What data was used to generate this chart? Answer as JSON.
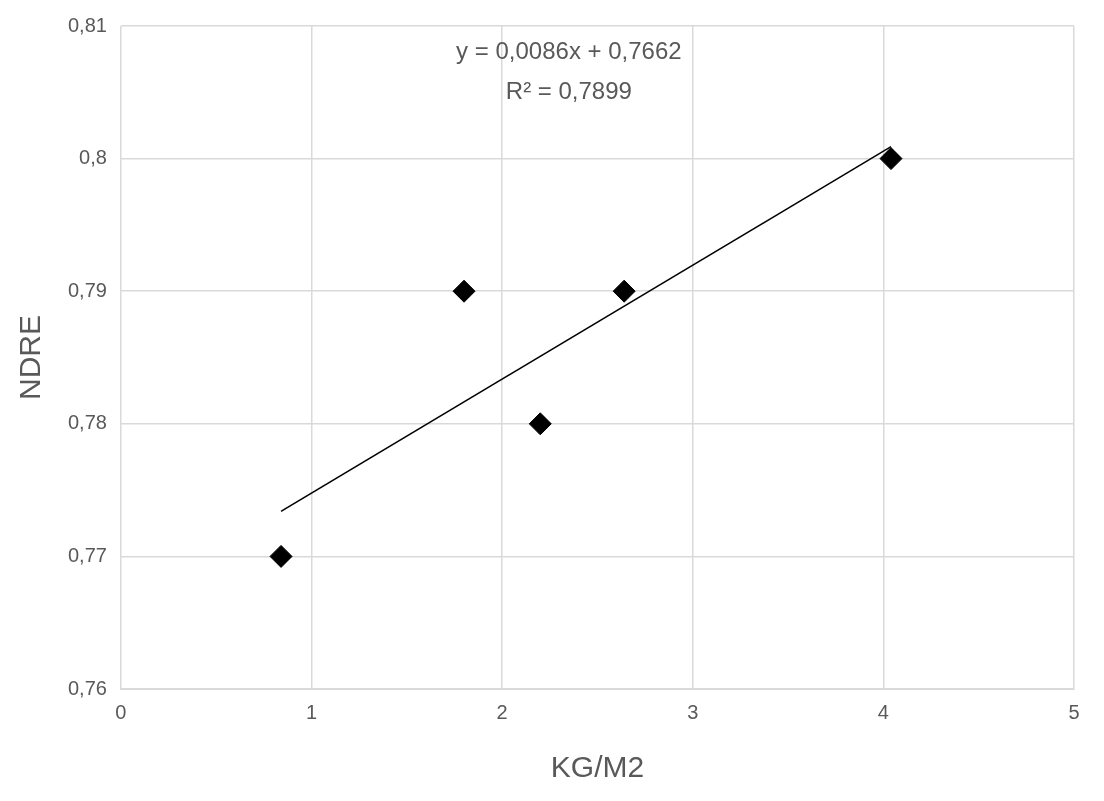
{
  "chart_data": {
    "type": "scatter",
    "xlabel": "KG/M2",
    "ylabel": "NDRE",
    "annotations": [
      "y = 0,0086x + 0,7662",
      "R² = 0,7899"
    ],
    "series": [
      {
        "type": "scatter",
        "color": "#000000",
        "marker": "diamond",
        "x": [
          0.84,
          1.8,
          2.2,
          2.64,
          4.04
        ],
        "values": [
          0.77,
          0.79,
          0.78,
          0.79,
          0.8
        ]
      },
      {
        "type": "line",
        "color": "#000000",
        "marker": "none",
        "line_style": "solid",
        "x": [
          0.84,
          4.04
        ],
        "values": [
          0.7734,
          0.8009
        ]
      }
    ],
    "xlim": [
      0,
      5
    ],
    "xticks": [
      0,
      1,
      2,
      3,
      4,
      5
    ],
    "ylim": [
      0.76,
      0.81
    ],
    "yticks": [
      {
        "value": 0.76,
        "label": "0,76"
      },
      {
        "value": 0.77,
        "label": "0,77"
      },
      {
        "value": 0.78,
        "label": "0,78"
      },
      {
        "value": 0.79,
        "label": "0,79"
      },
      {
        "value": 0.8,
        "label": "0,8"
      },
      {
        "value": 0.81,
        "label": "0,81"
      }
    ],
    "grid": true,
    "legend": false
  }
}
